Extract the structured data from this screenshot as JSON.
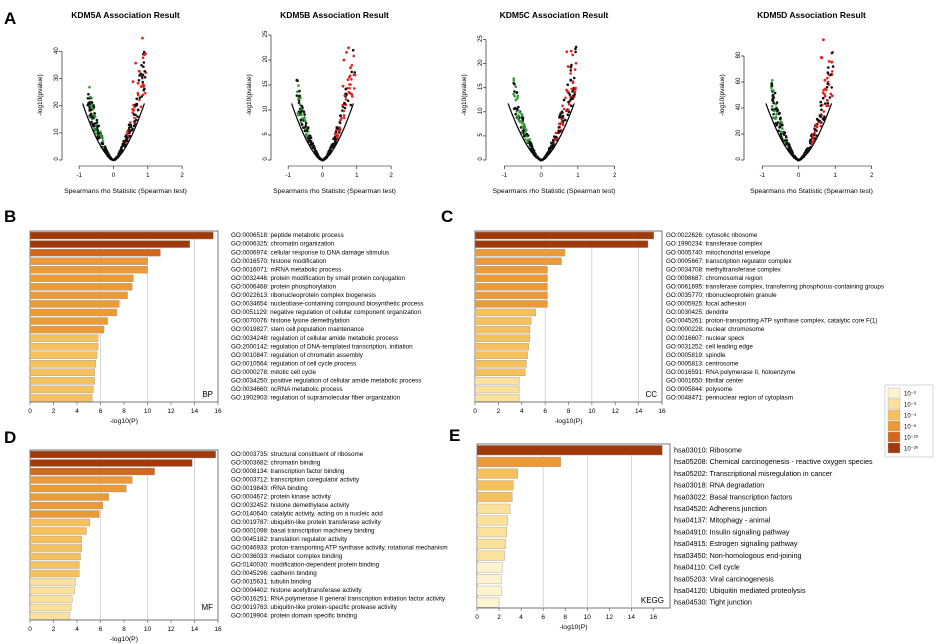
{
  "panel_letters": {
    "a": "A",
    "b": "B",
    "c": "C",
    "d": "D",
    "e": "E"
  },
  "volcano": {
    "ylabel": "-log10(pvalue)",
    "xlabel": "Spearmans rho Statistic (Spearman test)",
    "x_ticks": [
      "-1",
      "0",
      "1",
      "2"
    ],
    "plots": [
      {
        "title": "KDM5A Association Result",
        "ymax": 48,
        "y_ticks": [
          0,
          10,
          20,
          30,
          40
        ]
      },
      {
        "title": "KDM5B Association Result",
        "ymax": 26,
        "y_ticks": [
          0,
          5,
          10,
          15,
          20,
          25
        ]
      },
      {
        "title": "KDM5C Association Result",
        "ymax": 27,
        "y_ticks": [
          0,
          5,
          10,
          15,
          20,
          25
        ]
      },
      {
        "title": "KDM5D Association Result",
        "ymax": 100,
        "y_ticks": [
          0,
          20,
          40,
          60,
          80
        ]
      }
    ]
  },
  "legend": {
    "labels": [
      "10⁻²",
      "10⁻³",
      "10⁻⁴",
      "10⁻⁶",
      "10⁻¹⁰",
      "10⁻²⁰"
    ],
    "colors": [
      "#fdf4cf",
      "#fbe19b",
      "#f6c05c",
      "#ec9a37",
      "#d4671d",
      "#a0390b"
    ]
  },
  "chart_data": [
    {
      "type": "bar",
      "panel": "B",
      "category_label": "BP",
      "xlabel": "-log10(P)",
      "xlim": [
        0,
        16
      ],
      "x_ticks": [
        "0",
        "2",
        "4",
        "6",
        "8",
        "10",
        "12",
        "14",
        "16"
      ],
      "categories": [
        "GO:0006518: peptide metabolic process",
        "GO:0006325: chromatin organization",
        "GO:0006974: cellular response to DNA damage stimulus",
        "GO:0016570: histone modification",
        "GO:0016071: mRNA metabolic process",
        "GO:0032446: protein modification by small protein conjugation",
        "GO:0006468: protein phosphorylation",
        "GO:0022613: ribonucleoprotein complex biogenesis",
        "GO:0034654: nucleobase-containing compound biosynthetic process",
        "GO:0051129: negative regulation of cellular component organization",
        "GO:0070076: histone lysine demethylation",
        "GO:0019827: stem cell population maintenance",
        "GO:0034248: regulation of cellular amide metabolic process",
        "GO:2000142: regulation of DNA-templated transcription, initiation",
        "GO:0010847: regulation of chromatin assembly",
        "GO:0010564: regulation of cell cycle process",
        "GO:0000278: mitotic cell cycle",
        "GO:0034250: positive regulation of cellular amide metabolic process",
        "GO:0034660: ncRNA metabolic process",
        "GO:1902903: regulation of supramolecular fiber organization"
      ],
      "values": [
        15.6,
        13.6,
        11.1,
        10.0,
        10.0,
        8.8,
        8.7,
        8.3,
        7.6,
        7.4,
        6.6,
        6.3,
        5.8,
        5.8,
        5.7,
        5.6,
        5.5,
        5.5,
        5.4,
        5.3
      ],
      "color_levels": [
        5,
        5,
        4,
        3,
        3,
        3,
        3,
        3,
        3,
        3,
        3,
        3,
        2,
        2,
        2,
        2,
        2,
        2,
        2,
        2
      ]
    },
    {
      "type": "bar",
      "panel": "C",
      "category_label": "CC",
      "xlabel": "-log10(P)",
      "xlim": [
        0,
        16
      ],
      "x_ticks": [
        "0",
        "2",
        "4",
        "6",
        "8",
        "10",
        "12",
        "14",
        "16"
      ],
      "categories": [
        "GO:0022626: cytosolic ribosome",
        "GO:1990234: transferase complex",
        "GO:0005740: mitochondrial envelope",
        "GO:0005667: transcription regulator complex",
        "GO:0034708: methyltransferase complex",
        "GO:0098687: chromosomal region",
        "GO:0061695: transferase complex, transferring phosphorus-containing groups",
        "GO:0035770: ribonucleoprotein granule",
        "GO:0005925: focal adhesion",
        "GO:0030425: dendrite",
        "GO:0045261: proton-transporting ATP synthase complex, catalytic core F(1)",
        "GO:0000228: nuclear chromosome",
        "GO:0016607: nuclear speck",
        "GO:0031252: cell leading edge",
        "GO:0005819: spindle",
        "GO:0005813: centrosome",
        "GO:0016591: RNA polymerase II, holoenzyme",
        "GO:0001650: fibrillar center",
        "GO:0005844: polysome",
        "GO:0048471: perinuclear region of cytoplasm"
      ],
      "values": [
        15.3,
        14.8,
        7.7,
        7.4,
        6.2,
        6.2,
        6.2,
        6.2,
        6.2,
        5.2,
        4.8,
        4.7,
        4.7,
        4.6,
        4.5,
        4.4,
        4.3,
        3.8,
        3.8,
        3.8
      ],
      "color_levels": [
        5,
        5,
        3,
        3,
        3,
        3,
        3,
        3,
        3,
        2,
        2,
        2,
        2,
        2,
        2,
        2,
        2,
        1,
        1,
        1
      ]
    },
    {
      "type": "bar",
      "panel": "D",
      "category_label": "MF",
      "xlabel": "-log10(P)",
      "xlim": [
        0,
        16
      ],
      "x_ticks": [
        "0",
        "2",
        "4",
        "6",
        "8",
        "10",
        "12",
        "14",
        "16"
      ],
      "categories": [
        "GO:0003735: structural constituent of ribosome",
        "GO:0003682: chromatin binding",
        "GO:0008134: transcription factor binding",
        "GO:0003712: transcription coregulator activity",
        "GO:0019843: rRNA binding",
        "GO:0004672: protein kinase activity",
        "GO:0032452: histone demethylase activity",
        "GO:0140640: catalytic activity, acting on a nucleic acid",
        "GO:0019787: ubiquitin-like protein transferase activity",
        "GO:0001098: basal transcription machinery binding",
        "GO:0045182: translation regulator activity",
        "GO:0046933: proton-transporting ATP synthase activity, rotational mechanism",
        "GO:0036033: mediator complex binding",
        "GO:0140030: modification-dependent protein binding",
        "GO:0045296: cadherin binding",
        "GO:0015631: tubulin binding",
        "GO:0004402: histone acetyltransferase activity",
        "GO:0016251: RNA polymerase II general transcription initiation factor activity",
        "GO:0019783: ubiquitin-like protein-specific protease activity",
        "GO:0019904: protein domain specific binding"
      ],
      "values": [
        15.8,
        13.8,
        10.6,
        8.7,
        8.2,
        6.7,
        6.2,
        5.9,
        5.1,
        4.8,
        4.4,
        4.4,
        4.3,
        4.2,
        4.2,
        3.9,
        3.8,
        3.6,
        3.5,
        3.4
      ],
      "color_levels": [
        5,
        5,
        4,
        3,
        3,
        3,
        3,
        3,
        2,
        2,
        2,
        2,
        2,
        2,
        2,
        1,
        1,
        1,
        1,
        1
      ]
    },
    {
      "type": "bar",
      "panel": "E",
      "category_label": "KEGG",
      "xlabel": "-log10(P)",
      "xlim": [
        0,
        17.5
      ],
      "x_ticks": [
        "0",
        "2",
        "4",
        "6",
        "8",
        "10",
        "12",
        "14",
        "16"
      ],
      "categories": [
        "hsa03010: Ribosome",
        "hsa05208: Chemical carcinogenesis - reactive oxygen species",
        "hsa05202: Transcriptional misregulation in cancer",
        "hsa03018: RNA degradation",
        "hsa03022: Basal transcription factors",
        "hsa04520: Adherens junction",
        "hsa04137: Mitophagy - animal",
        "hsa04910: Insulin signaling pathway",
        "hsa04915: Estrogen signaling pathway",
        "hsa03450: Non-homologous end-joining",
        "hsa04110: Cell cycle",
        "hsa05203: Viral carcinogenesis",
        "hsa04120: Ubiquitin mediated proteolysis",
        "hsa04530: Tight junction"
      ],
      "values": [
        16.8,
        7.6,
        3.7,
        3.3,
        3.2,
        3.0,
        2.8,
        2.7,
        2.6,
        2.5,
        2.3,
        2.2,
        2.2,
        2.0
      ],
      "color_levels": [
        5,
        3,
        2,
        2,
        2,
        1,
        1,
        1,
        1,
        1,
        0,
        0,
        0,
        0
      ]
    }
  ]
}
